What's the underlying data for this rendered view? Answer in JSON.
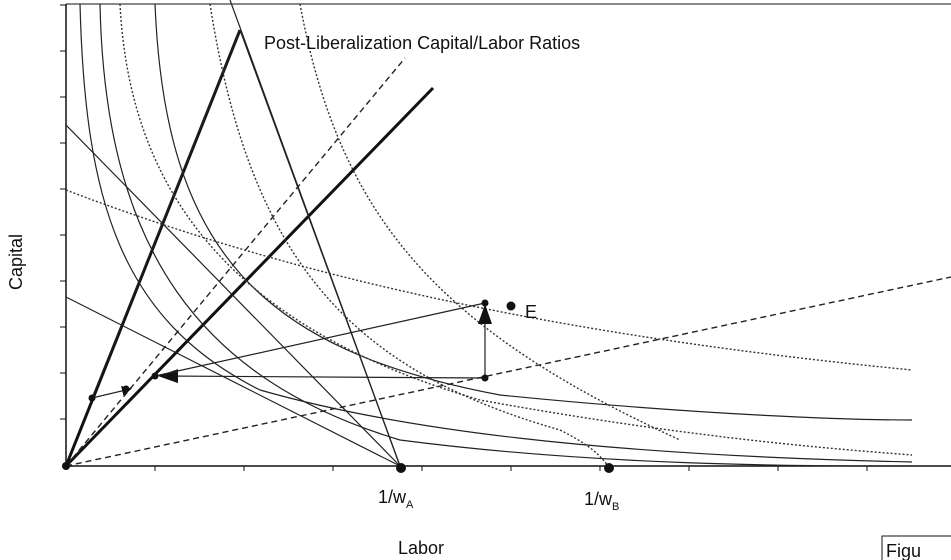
{
  "annotation": "Post-Liberalization Capital/Labor Ratios",
  "point_label": "E",
  "x_labels": [
    {
      "base": "1/w",
      "sub": "A"
    },
    {
      "base": "1/w",
      "sub": "B"
    }
  ],
  "x_axis_label": "Labor",
  "y_axis_label": "Capital",
  "figure_caption": "Figu"
}
